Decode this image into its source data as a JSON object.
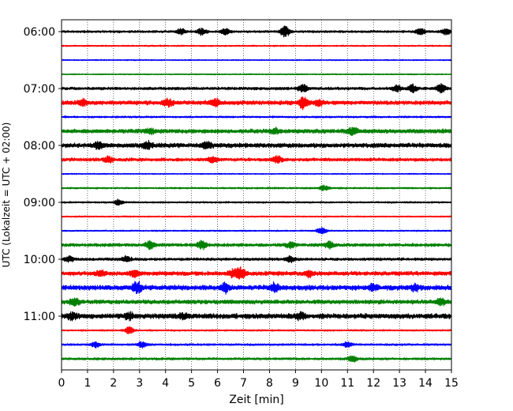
{
  "chart_data": {
    "type": "line",
    "title": "",
    "xlabel": "Zeit  [min]",
    "ylabel": "UTC (Lokalzeit = UTC + 02:00)",
    "xlim": [
      0,
      15
    ],
    "x_ticks": [
      "0",
      "1",
      "2",
      "3",
      "4",
      "5",
      "6",
      "7",
      "8",
      "9",
      "10",
      "11",
      "12",
      "13",
      "14",
      "15"
    ],
    "y_tick_labels": [
      "06:00",
      "07:00",
      "08:00",
      "09:00",
      "10:00",
      "11:00"
    ],
    "grid": "vertical-dotted",
    "trace_colors": [
      "#000000",
      "#ff0000",
      "#0000ff",
      "#008000"
    ],
    "traces": [
      {
        "start": "06:00",
        "color": "#000000",
        "amplitude": 0.25,
        "bursts": [
          [
            4.6,
            0.5
          ],
          [
            5.4,
            0.6
          ],
          [
            6.3,
            0.6
          ],
          [
            8.6,
            1.0
          ],
          [
            13.8,
            0.6
          ],
          [
            14.8,
            0.5
          ]
        ]
      },
      {
        "start": "06:15",
        "color": "#ff0000",
        "amplitude": 0.15,
        "bursts": []
      },
      {
        "start": "06:30",
        "color": "#0000ff",
        "amplitude": 0.12,
        "bursts": []
      },
      {
        "start": "06:45",
        "color": "#008000",
        "amplitude": 0.12,
        "bursts": []
      },
      {
        "start": "07:00",
        "color": "#000000",
        "amplitude": 0.3,
        "bursts": [
          [
            9.3,
            0.7
          ],
          [
            12.9,
            0.6
          ],
          [
            13.5,
            0.7
          ],
          [
            14.6,
            0.8
          ]
        ]
      },
      {
        "start": "07:15",
        "color": "#ff0000",
        "amplitude": 0.45,
        "bursts": [
          [
            0.8,
            0.6
          ],
          [
            4.1,
            0.7
          ],
          [
            5.9,
            0.7
          ],
          [
            9.3,
            1.0
          ],
          [
            9.9,
            0.5
          ]
        ]
      },
      {
        "start": "07:30",
        "color": "#0000ff",
        "amplitude": 0.2,
        "bursts": []
      },
      {
        "start": "07:45",
        "color": "#008000",
        "amplitude": 0.45,
        "bursts": [
          [
            3.4,
            0.5
          ],
          [
            8.2,
            0.5
          ],
          [
            11.2,
            0.6
          ]
        ]
      },
      {
        "start": "08:00",
        "color": "#000000",
        "amplitude": 0.5,
        "bursts": [
          [
            1.4,
            0.6
          ],
          [
            3.3,
            0.6
          ],
          [
            5.6,
            0.5
          ]
        ]
      },
      {
        "start": "08:15",
        "color": "#ff0000",
        "amplitude": 0.35,
        "bursts": [
          [
            1.8,
            0.6
          ],
          [
            5.8,
            0.5
          ],
          [
            8.3,
            0.6
          ]
        ]
      },
      {
        "start": "08:30",
        "color": "#0000ff",
        "amplitude": 0.12,
        "bursts": []
      },
      {
        "start": "08:45",
        "color": "#008000",
        "amplitude": 0.18,
        "bursts": [
          [
            10.1,
            0.5
          ]
        ]
      },
      {
        "start": "09:00",
        "color": "#000000",
        "amplitude": 0.18,
        "bursts": [
          [
            2.2,
            0.5
          ]
        ]
      },
      {
        "start": "09:15",
        "color": "#ff0000",
        "amplitude": 0.15,
        "bursts": []
      },
      {
        "start": "09:30",
        "color": "#0000ff",
        "amplitude": 0.15,
        "bursts": [
          [
            10.0,
            0.6
          ]
        ]
      },
      {
        "start": "09:45",
        "color": "#008000",
        "amplitude": 0.35,
        "bursts": [
          [
            3.4,
            0.6
          ],
          [
            5.4,
            0.7
          ],
          [
            8.8,
            0.5
          ],
          [
            10.3,
            0.6
          ]
        ]
      },
      {
        "start": "10:00",
        "color": "#000000",
        "amplitude": 0.3,
        "bursts": [
          [
            0.3,
            0.5
          ],
          [
            2.5,
            0.5
          ],
          [
            8.8,
            0.5
          ]
        ]
      },
      {
        "start": "10:15",
        "color": "#ff0000",
        "amplitude": 0.45,
        "bursts": [
          [
            1.5,
            0.5
          ],
          [
            2.8,
            0.5
          ],
          [
            6.6,
            0.6
          ],
          [
            6.9,
            1.0
          ],
          [
            9.5,
            0.5
          ]
        ]
      },
      {
        "start": "10:30",
        "color": "#0000ff",
        "amplitude": 0.55,
        "bursts": [
          [
            2.9,
            1.0
          ],
          [
            6.3,
            0.8
          ],
          [
            8.2,
            0.7
          ],
          [
            12.0,
            0.5
          ],
          [
            13.6,
            0.5
          ]
        ]
      },
      {
        "start": "10:45",
        "color": "#008000",
        "amplitude": 0.45,
        "bursts": [
          [
            0.5,
            0.6
          ],
          [
            14.6,
            0.6
          ]
        ]
      },
      {
        "start": "11:00",
        "color": "#000000",
        "amplitude": 0.55,
        "bursts": [
          [
            0.4,
            0.6
          ],
          [
            2.6,
            0.5
          ],
          [
            4.7,
            0.5
          ],
          [
            9.2,
            0.6
          ]
        ]
      },
      {
        "start": "11:15",
        "color": "#ff0000",
        "amplitude": 0.18,
        "bursts": [
          [
            2.6,
            0.6
          ]
        ]
      },
      {
        "start": "11:30",
        "color": "#0000ff",
        "amplitude": 0.22,
        "bursts": [
          [
            1.3,
            0.5
          ],
          [
            3.1,
            0.5
          ],
          [
            11.0,
            0.5
          ]
        ]
      },
      {
        "start": "11:45",
        "color": "#008000",
        "amplitude": 0.25,
        "bursts": [
          [
            11.2,
            0.5
          ]
        ]
      }
    ]
  }
}
